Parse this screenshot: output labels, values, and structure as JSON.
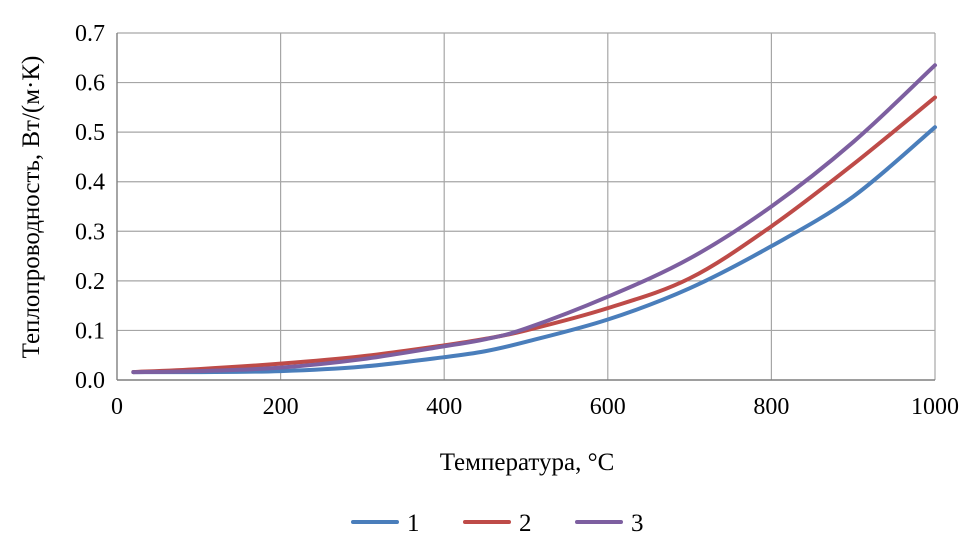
{
  "chart_data": {
    "type": "line",
    "title": "",
    "xlabel": "Температура, °С",
    "ylabel": "Теплопроводность, Вт/(м·К)",
    "xlim": [
      0,
      1000
    ],
    "ylim": [
      0,
      0.7
    ],
    "xticks": [
      0,
      200,
      400,
      600,
      800,
      1000
    ],
    "yticks": [
      0,
      0.1,
      0.2,
      0.3,
      0.4,
      0.5,
      0.6,
      0.7
    ],
    "xtick_labels": [
      "0",
      "200",
      "400",
      "600",
      "800",
      "1000"
    ],
    "ytick_labels": [
      "0.0",
      "0.1",
      "0.2",
      "0.3",
      "0.4",
      "0.5",
      "0.6",
      "0.7"
    ],
    "grid": true,
    "legend_position": "bottom",
    "series": [
      {
        "name": "1",
        "color": "#4a7ebb",
        "x": [
          20,
          100,
          200,
          300,
          400,
          450,
          500,
          600,
          700,
          800,
          900,
          1000
        ],
        "y": [
          0.016,
          0.016,
          0.018,
          0.027,
          0.046,
          0.058,
          0.077,
          0.122,
          0.185,
          0.27,
          0.37,
          0.51
        ]
      },
      {
        "name": "2",
        "color": "#be4b48",
        "x": [
          20,
          100,
          200,
          300,
          400,
          450,
          500,
          600,
          700,
          800,
          900,
          1000
        ],
        "y": [
          0.016,
          0.022,
          0.033,
          0.048,
          0.07,
          0.083,
          0.1,
          0.145,
          0.205,
          0.31,
          0.435,
          0.57
        ]
      },
      {
        "name": "3",
        "color": "#7d5fa0",
        "x": [
          20,
          100,
          200,
          300,
          400,
          450,
          500,
          600,
          700,
          800,
          900,
          1000
        ],
        "y": [
          0.016,
          0.018,
          0.025,
          0.042,
          0.068,
          0.082,
          0.104,
          0.168,
          0.245,
          0.35,
          0.48,
          0.635
        ]
      }
    ]
  }
}
